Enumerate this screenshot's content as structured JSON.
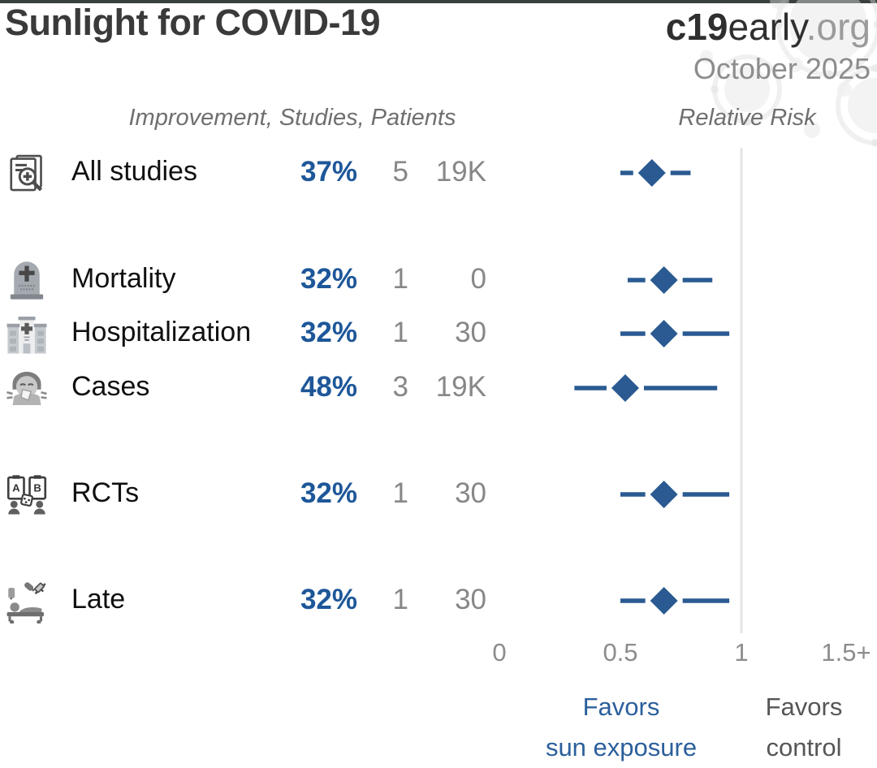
{
  "page": {
    "title": "Sunlight for COVID-19",
    "brand_bold": "c19",
    "brand_regular": "early",
    "brand_suffix": ".org",
    "date": "October 2025"
  },
  "columns": {
    "left_header": "Improvement, Studies, Patients",
    "right_header": "Relative Risk"
  },
  "footer": {
    "favors_left_line1": "Favors",
    "favors_left_line2": "sun exposure",
    "favors_right_line1": "Favors",
    "favors_right_line2": "control"
  },
  "colors": {
    "accent_blue": "#1e5799",
    "diamond_blue": "#2a5a91",
    "favors_blue": "#2b5f9c",
    "gray_text": "#878787",
    "ref_line": "#e4e4e4"
  },
  "chart_data": {
    "type": "forest",
    "title": "Sunlight for COVID-19",
    "xlabel": "Relative Risk",
    "axis": {
      "tick_labels": [
        "0",
        "0.5",
        "1",
        "1.5+"
      ],
      "tick_values": [
        0,
        0.5,
        1,
        1.5
      ],
      "xlim": [
        0,
        1.5
      ],
      "reference_line": 1
    },
    "rows": [
      {
        "icon": "all-studies-icon",
        "label": "All studies",
        "improvement": "37%",
        "studies": "5",
        "patients": "19K",
        "rr": 0.63,
        "ci_low": 0.5,
        "ci_high": 0.79
      },
      {
        "icon": "mortality-icon",
        "label": "Mortality",
        "improvement": "32%",
        "studies": "1",
        "patients": "0",
        "rr": 0.68,
        "ci_low": 0.53,
        "ci_high": 0.88
      },
      {
        "icon": "hospitalization-icon",
        "label": "Hospitalization",
        "improvement": "32%",
        "studies": "1",
        "patients": "30",
        "rr": 0.68,
        "ci_low": 0.5,
        "ci_high": 0.95
      },
      {
        "icon": "cases-icon",
        "label": "Cases",
        "improvement": "48%",
        "studies": "3",
        "patients": "19K",
        "rr": 0.52,
        "ci_low": 0.31,
        "ci_high": 0.9
      },
      {
        "icon": "rcts-icon",
        "label": "RCTs",
        "improvement": "32%",
        "studies": "1",
        "patients": "30",
        "rr": 0.68,
        "ci_low": 0.5,
        "ci_high": 0.95
      },
      {
        "icon": "late-icon",
        "label": "Late",
        "improvement": "32%",
        "studies": "1",
        "patients": "30",
        "rr": 0.68,
        "ci_low": 0.5,
        "ci_high": 0.95
      }
    ]
  }
}
